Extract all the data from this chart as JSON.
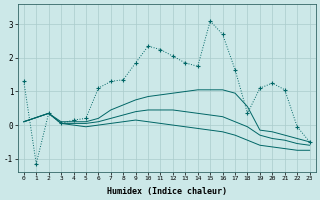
{
  "xlabel": "Humidex (Indice chaleur)",
  "background_color": "#cce8e8",
  "grid_color": "#aacccc",
  "line_color": "#006666",
  "xlim": [
    -0.5,
    23.5
  ],
  "ylim": [
    -1.4,
    3.6
  ],
  "yticks": [
    -1,
    0,
    1,
    2,
    3
  ],
  "xticks": [
    0,
    1,
    2,
    3,
    4,
    5,
    6,
    7,
    8,
    9,
    10,
    11,
    12,
    13,
    14,
    15,
    16,
    17,
    18,
    19,
    20,
    21,
    22,
    23
  ],
  "series": [
    {
      "x": [
        0,
        1,
        2,
        3,
        4,
        5,
        6,
        7,
        8,
        9,
        10,
        11,
        12,
        13,
        14,
        15,
        16,
        17,
        18,
        19,
        20,
        21,
        22,
        23
      ],
      "y": [
        1.3,
        -1.15,
        0.35,
        0.05,
        0.15,
        0.2,
        1.1,
        1.3,
        1.35,
        1.85,
        2.35,
        2.25,
        2.05,
        1.85,
        1.75,
        3.1,
        2.7,
        1.65,
        0.35,
        1.1,
        1.25,
        1.05,
        -0.05,
        -0.5
      ],
      "linestyle": "dotted",
      "marker": "+"
    },
    {
      "x": [
        0,
        2,
        3,
        4,
        5,
        6,
        7,
        8,
        9,
        10,
        11,
        12,
        13,
        14,
        15,
        16,
        17,
        18,
        19,
        20,
        21,
        22,
        23
      ],
      "y": [
        0.1,
        0.35,
        0.1,
        0.1,
        0.1,
        0.2,
        0.45,
        0.6,
        0.75,
        0.85,
        0.9,
        0.95,
        1.0,
        1.05,
        1.05,
        1.05,
        0.95,
        0.55,
        -0.15,
        -0.2,
        -0.3,
        -0.4,
        -0.5
      ],
      "linestyle": "solid",
      "marker": null
    },
    {
      "x": [
        0,
        2,
        3,
        4,
        5,
        6,
        7,
        8,
        9,
        10,
        11,
        12,
        13,
        14,
        15,
        16,
        17,
        18,
        19,
        20,
        21,
        22,
        23
      ],
      "y": [
        0.1,
        0.35,
        0.05,
        0.05,
        0.05,
        0.1,
        0.2,
        0.3,
        0.4,
        0.45,
        0.45,
        0.45,
        0.4,
        0.35,
        0.3,
        0.25,
        0.1,
        -0.05,
        -0.3,
        -0.4,
        -0.45,
        -0.55,
        -0.6
      ],
      "linestyle": "solid",
      "marker": null
    },
    {
      "x": [
        0,
        2,
        3,
        4,
        5,
        6,
        7,
        8,
        9,
        10,
        11,
        12,
        13,
        14,
        15,
        16,
        17,
        18,
        19,
        20,
        21,
        22,
        23
      ],
      "y": [
        0.1,
        0.35,
        0.05,
        0.0,
        -0.05,
        0.0,
        0.05,
        0.1,
        0.15,
        0.1,
        0.05,
        0.0,
        -0.05,
        -0.1,
        -0.15,
        -0.2,
        -0.3,
        -0.45,
        -0.6,
        -0.65,
        -0.7,
        -0.75,
        -0.75
      ],
      "linestyle": "solid",
      "marker": null
    }
  ]
}
